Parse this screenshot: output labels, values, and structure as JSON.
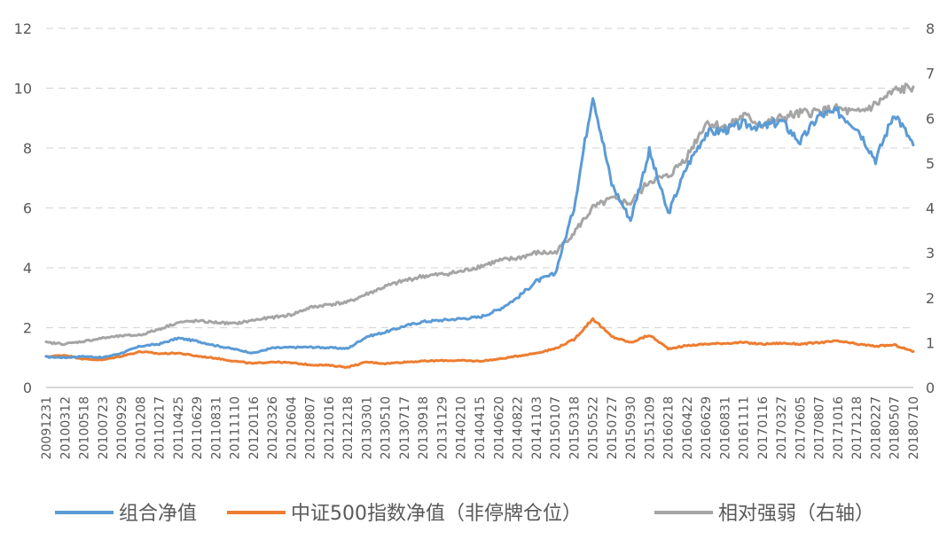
{
  "chart_data": {
    "type": "line",
    "x_dates": [
      "20091231",
      "20100312",
      "20100518",
      "20100723",
      "20100929",
      "20101208",
      "20110217",
      "20110425",
      "20110629",
      "20110831",
      "20111110",
      "20120116",
      "20120326",
      "20120604",
      "20120807",
      "20121016",
      "20121218",
      "20130301",
      "20130510",
      "20130717",
      "20130918",
      "20131129",
      "20140210",
      "20140415",
      "20140620",
      "20140822",
      "20141103",
      "20150107",
      "20150318",
      "20150522",
      "20150727",
      "20150930",
      "20151209",
      "20160218",
      "20160422",
      "20160629",
      "20160831",
      "20161111",
      "20170116",
      "20170327",
      "20170605",
      "20170807",
      "20171016",
      "20171218",
      "20180227",
      "20180507",
      "20180710"
    ],
    "y_left": {
      "min": 0,
      "max": 12,
      "step": 2,
      "ticks": [
        "0",
        "2",
        "4",
        "6",
        "8",
        "10",
        "12"
      ]
    },
    "y_right": {
      "min": 0,
      "max": 8,
      "step": 1,
      "ticks": [
        "0",
        "1",
        "2",
        "3",
        "4",
        "5",
        "6",
        "7",
        "8"
      ]
    },
    "grid": "horizontal-dashed",
    "legend_position": "bottom",
    "series": [
      {
        "name": "组合净值",
        "axis": "left",
        "color": "#5b9bd5",
        "values": [
          1.02,
          1.0,
          1.04,
          1.0,
          1.15,
          1.38,
          1.45,
          1.65,
          1.55,
          1.4,
          1.28,
          1.15,
          1.32,
          1.34,
          1.35,
          1.33,
          1.3,
          1.7,
          1.85,
          2.05,
          2.2,
          2.25,
          2.3,
          2.35,
          2.6,
          3.0,
          3.55,
          3.8,
          6.0,
          9.8,
          6.8,
          5.6,
          7.9,
          5.8,
          7.4,
          8.5,
          8.6,
          8.8,
          8.7,
          8.9,
          8.2,
          9.1,
          9.2,
          8.7,
          7.6,
          9.2,
          8.1
        ]
      },
      {
        "name": "中证500指数净值（非停牌仓位）",
        "axis": "left",
        "color": "#ed7d31",
        "values": [
          1.03,
          1.08,
          0.95,
          0.92,
          1.05,
          1.2,
          1.13,
          1.15,
          1.05,
          0.98,
          0.88,
          0.8,
          0.86,
          0.82,
          0.76,
          0.74,
          0.68,
          0.85,
          0.8,
          0.85,
          0.88,
          0.9,
          0.9,
          0.88,
          0.95,
          1.05,
          1.15,
          1.3,
          1.6,
          2.3,
          1.7,
          1.5,
          1.75,
          1.3,
          1.4,
          1.45,
          1.48,
          1.5,
          1.45,
          1.48,
          1.45,
          1.5,
          1.55,
          1.45,
          1.38,
          1.42,
          1.2
        ]
      },
      {
        "name": "相对强弱（右轴）",
        "axis": "right",
        "color": "#a5a5a5",
        "values": [
          1.0,
          0.97,
          1.03,
          1.1,
          1.15,
          1.17,
          1.3,
          1.45,
          1.48,
          1.45,
          1.42,
          1.5,
          1.56,
          1.62,
          1.78,
          1.85,
          1.9,
          2.08,
          2.25,
          2.38,
          2.48,
          2.52,
          2.58,
          2.7,
          2.82,
          2.88,
          3.0,
          3.0,
          3.45,
          4.0,
          4.2,
          4.1,
          4.6,
          4.7,
          5.15,
          5.9,
          5.8,
          6.05,
          5.85,
          6.0,
          6.1,
          6.15,
          6.2,
          6.1,
          6.3,
          6.6,
          6.7
        ]
      }
    ]
  }
}
